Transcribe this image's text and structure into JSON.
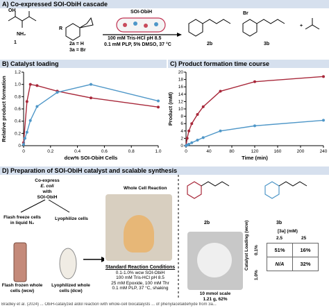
{
  "panelA": {
    "header": "A) Co-expressed SOI-ObiH cascade",
    "label_1": "1",
    "label_2": "2a = H",
    "label_3": "3a = Br",
    "cell_label": "SOI-ObiH",
    "conditions_line1": "100 mM Tris-HCl pH 8.5",
    "conditions_line2": "0.1 mM PLP, 5% DMSO, 37 °C",
    "product_2b": "2b",
    "product_3b": "3b",
    "r_group": "R",
    "plus": "+",
    "nh2": "NH₂",
    "oh": "OH",
    "br": "Br"
  },
  "panelB": {
    "header": "B) Catalyst loading",
    "chart_data": {
      "type": "line",
      "xlabel": "dcw% SOI-ObiH Cells",
      "ylabel": "Relative product formation",
      "xlim": [
        0,
        1.0
      ],
      "ylim": [
        0,
        1.2
      ],
      "xticks": [
        "0",
        "0.2",
        "0.4",
        "0.6",
        "0.8",
        "1.0"
      ],
      "yticks": [
        "0",
        "0.2",
        "0.4",
        "0.6",
        "0.8",
        "1.0",
        "1.2"
      ],
      "series": [
        {
          "color": "#a8283a",
          "x": [
            0,
            0.025,
            0.05,
            0.1,
            0.25,
            0.5,
            1.0
          ],
          "y": [
            0.05,
            0.72,
            1.0,
            0.98,
            0.89,
            0.78,
            0.63
          ]
        },
        {
          "color": "#4f97c8",
          "x": [
            0,
            0.01,
            0.025,
            0.05,
            0.1,
            0.25,
            0.5,
            1.0
          ],
          "y": [
            0.02,
            0.12,
            0.22,
            0.41,
            0.64,
            0.87,
            1.0,
            0.73
          ]
        }
      ]
    }
  },
  "panelC": {
    "header": "C) Product formation time course",
    "chart_data": {
      "type": "line",
      "xlabel": "Time (min)",
      "ylabel": "Product (mM)",
      "xlim": [
        0,
        240
      ],
      "ylim": [
        0,
        20
      ],
      "xticks": [
        "0",
        "40",
        "80",
        "120",
        "160",
        "200",
        "240"
      ],
      "yticks": [
        "0",
        "2",
        "4",
        "6",
        "8",
        "10",
        "12",
        "14",
        "16",
        "18",
        "20"
      ],
      "series": [
        {
          "color": "#a8283a",
          "x": [
            0,
            2,
            5,
            10,
            20,
            30,
            60,
            120,
            240
          ],
          "y": [
            0,
            2.0,
            4.0,
            6.0,
            8.5,
            10.6,
            14.8,
            17.4,
            18.8
          ]
        },
        {
          "color": "#4f97c8",
          "x": [
            0,
            2,
            5,
            10,
            20,
            30,
            60,
            120,
            240
          ],
          "y": [
            0,
            0.2,
            0.4,
            0.8,
            1.5,
            2.2,
            4.0,
            5.4,
            6.9
          ]
        }
      ]
    }
  },
  "panelD": {
    "header": "D) Preparation of SOI-ObiH catalyst and scalable synthesis",
    "coexpress": "Co-express",
    "ecoli": "E. coli",
    "with": "with",
    "soi": "SOI-ObiH",
    "flash_freeze": "Flash freeze cells in liquid N₂",
    "lyophilize": "Lyophilize cells",
    "flash_frozen": "Flash frozen whole cells (wcw)",
    "lyophilized": "Lyophilized whole cells (dcw)",
    "whole_cell_title": "Whole Cell Reaction",
    "std_title": "Standard Reaction Conditions",
    "std_lines": [
      "0.1-1.0% wcw SOI-ObiH",
      "100 mM Tris-HCl pH 8.5",
      "25 mM Epoxide, 100 mM Thr",
      "0.1 mM PLP, 37 °C, shaking"
    ],
    "compound_2b": "2b",
    "compound_3b": "3b",
    "scale_line1": "10 mmol scale",
    "scale_line2": "1.21 g, 62%",
    "table_title": "[3a] (mM)",
    "conc_cols": [
      "2.5",
      "25"
    ],
    "row_header": "Catalyst Loading (wcw)",
    "row_labels": [
      "0.1%",
      "1.0%"
    ],
    "cells": [
      [
        "51%",
        "16%"
      ],
      [
        "N/A",
        "32%"
      ]
    ]
  },
  "footer": {
    "text": "Bradley et al. (2024) ... ObiH-catalyzed aldol reaction with whole-cell biocatalysts ... of phenylacetaldehyde from 3a..."
  }
}
